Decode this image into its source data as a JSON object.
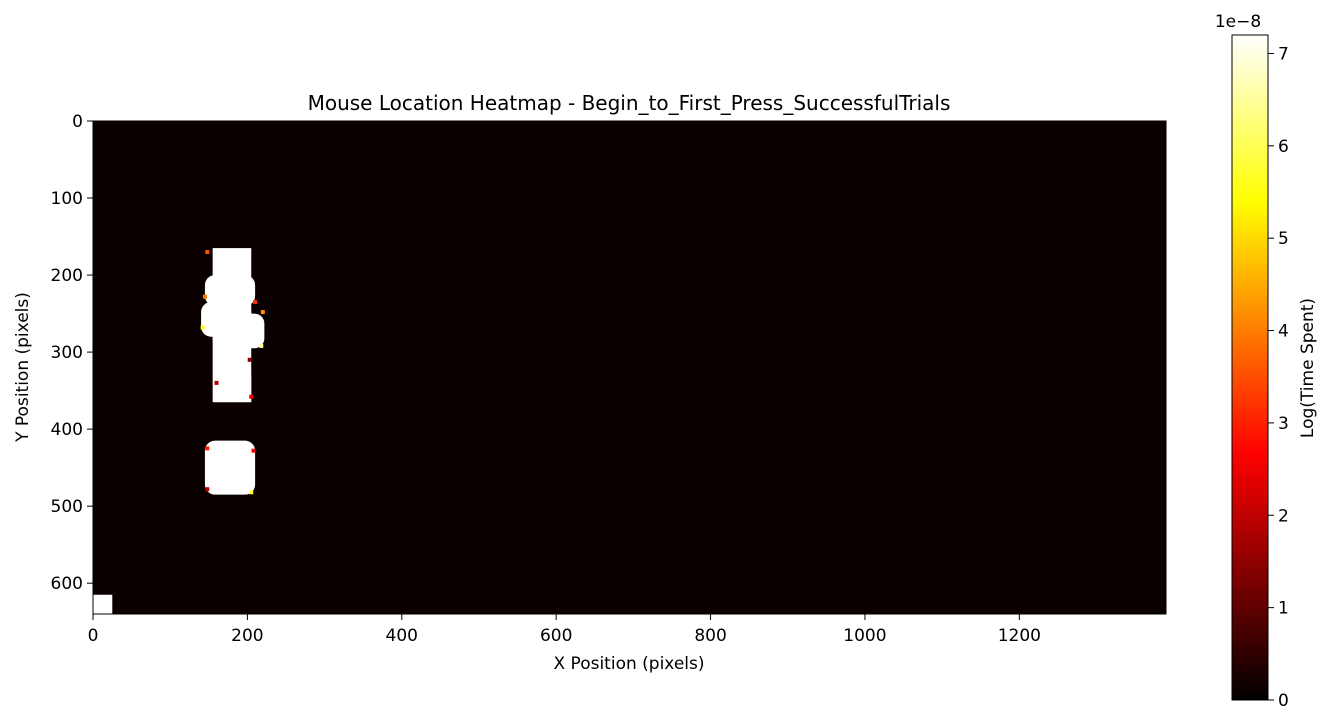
{
  "chart_data": {
    "type": "heatmap",
    "title": "Mouse Location Heatmap - Begin_to_First_Press_SuccessfulTrials",
    "xlabel": "X Position (pixels)",
    "ylabel": "Y Position (pixels)",
    "xlim": [
      0,
      1390
    ],
    "ylim": [
      640,
      0
    ],
    "x_ticks": [
      0,
      200,
      400,
      600,
      800,
      1000,
      1200
    ],
    "y_ticks": [
      0,
      100,
      200,
      300,
      400,
      500,
      600
    ],
    "grid": false,
    "background_value": 0,
    "colormap": {
      "name": "hot",
      "stops": [
        "#000000",
        "#ff0000",
        "#ffff00",
        "#ffffff"
      ]
    },
    "colorbar": {
      "label": "Log(Time Spent)",
      "offset_text": "1e−8",
      "min": 0,
      "max": 7.2,
      "ticks": [
        0,
        1,
        2,
        3,
        4,
        5,
        6,
        7
      ]
    },
    "regions": [
      {
        "x": [
          155,
          205
        ],
        "y": [
          165,
          365
        ],
        "value": 7.2
      },
      {
        "x": [
          145,
          210
        ],
        "y": [
          200,
          240
        ],
        "value": 7.2
      },
      {
        "x": [
          140,
          205
        ],
        "y": [
          235,
          280
        ],
        "value": 7.2
      },
      {
        "x": [
          155,
          222
        ],
        "y": [
          250,
          295
        ],
        "value": 7.2
      },
      {
        "x": [
          158,
          205
        ],
        "y": [
          330,
          365
        ],
        "value": 7.2
      },
      {
        "x": [
          145,
          210
        ],
        "y": [
          415,
          485
        ],
        "value": 7.2
      },
      {
        "x": [
          0,
          25
        ],
        "y": [
          615,
          640
        ],
        "value": 7.2
      }
    ],
    "edge_cells": [
      {
        "x": 148,
        "y": 170,
        "value": 3.5
      },
      {
        "x": 145,
        "y": 228,
        "value": 4.0
      },
      {
        "x": 142,
        "y": 268,
        "value": 5.5
      },
      {
        "x": 220,
        "y": 248,
        "value": 4.2
      },
      {
        "x": 218,
        "y": 292,
        "value": 6.5
      },
      {
        "x": 203,
        "y": 310,
        "value": 1.5
      },
      {
        "x": 160,
        "y": 340,
        "value": 2.0
      },
      {
        "x": 205,
        "y": 358,
        "value": 2.5
      },
      {
        "x": 148,
        "y": 425,
        "value": 3.0
      },
      {
        "x": 208,
        "y": 428,
        "value": 2.5
      },
      {
        "x": 148,
        "y": 478,
        "value": 2.0
      },
      {
        "x": 205,
        "y": 482,
        "value": 5.8
      },
      {
        "x": 210,
        "y": 235,
        "value": 3.2
      }
    ]
  }
}
